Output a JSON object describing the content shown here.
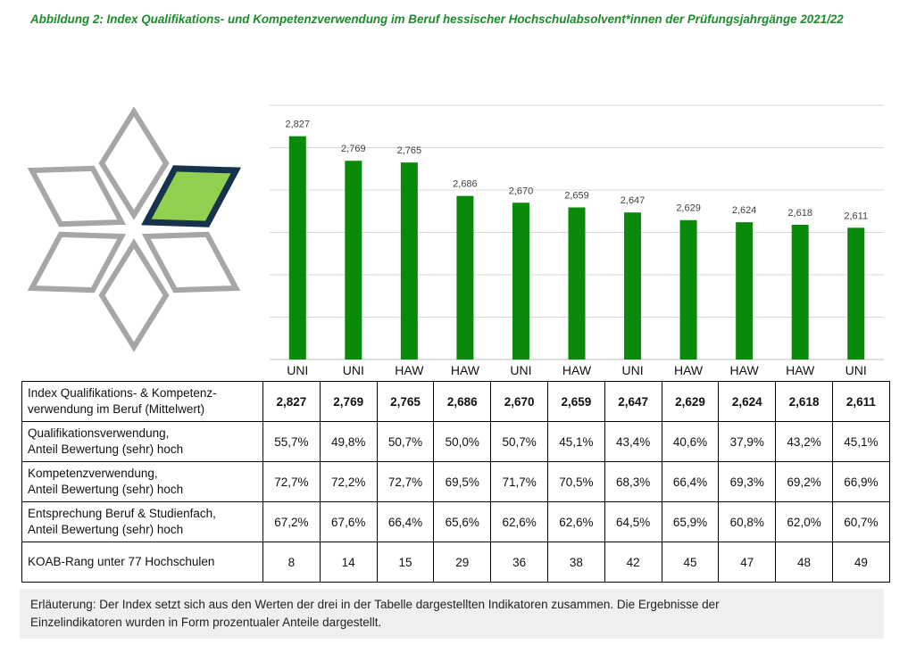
{
  "title": "Abbildung 2: Index Qualifikations- und Kompetenzverwendung im Beruf hessischer Hochschulabsolvent*innen der Prüfungsjahrgänge 2021/22",
  "colors": {
    "title": "#1f8a2e",
    "bar": "#0a8a0a",
    "logo_outline": "#a6a6a6",
    "logo_highlight_fill": "#92d050",
    "logo_highlight_stroke": "#17324d",
    "grid": "#d9d9d9",
    "note_background": "#efefef"
  },
  "chart_data": {
    "type": "bar",
    "categories": [
      "UNI",
      "UNI",
      "HAW",
      "HAW",
      "UNI",
      "HAW",
      "UNI",
      "HAW",
      "HAW",
      "HAW",
      "UNI"
    ],
    "values": [
      2.827,
      2.769,
      2.765,
      2.686,
      2.67,
      2.659,
      2.647,
      2.629,
      2.624,
      2.618,
      2.611
    ],
    "value_labels": [
      "2,827",
      "2,769",
      "2,765",
      "2,686",
      "2,670",
      "2,659",
      "2,647",
      "2,629",
      "2,624",
      "2,618",
      "2,611"
    ],
    "ylim": [
      2.3,
      2.9
    ],
    "y_gridlines": [
      2.3,
      2.4,
      2.5,
      2.6,
      2.7,
      2.8,
      2.9
    ],
    "grid": true,
    "legend": "none"
  },
  "table": {
    "rows": [
      {
        "label": [
          "Index Qualifikations- & Kompetenz-",
          "verwendung im Beruf (Mittelwert)"
        ],
        "values": [
          "2,827",
          "2,769",
          "2,765",
          "2,686",
          "2,670",
          "2,659",
          "2,647",
          "2,629",
          "2,624",
          "2,618",
          "2,611"
        ]
      },
      {
        "label": [
          "Qualifikationsverwendung,",
          "Anteil Bewertung (sehr) hoch"
        ],
        "values": [
          "55,7%",
          "49,8%",
          "50,7%",
          "50,0%",
          "50,7%",
          "45,1%",
          "43,4%",
          "40,6%",
          "37,9%",
          "43,2%",
          "45,1%"
        ]
      },
      {
        "label": [
          "Kompetenzverwendung,",
          "Anteil Bewertung (sehr) hoch"
        ],
        "values": [
          "72,7%",
          "72,2%",
          "72,7%",
          "69,5%",
          "71,7%",
          "70,5%",
          "68,3%",
          "66,4%",
          "69,3%",
          "69,2%",
          "66,9%"
        ]
      },
      {
        "label": [
          "Entsprechung Beruf & Studienfach,",
          "Anteil Bewertung (sehr) hoch"
        ],
        "values": [
          "67,2%",
          "67,6%",
          "66,4%",
          "65,6%",
          "62,6%",
          "62,6%",
          "64,5%",
          "65,9%",
          "60,8%",
          "62,0%",
          "60,7%"
        ]
      },
      {
        "label": [
          "KOAB-Rang unter 77 Hochschulen"
        ],
        "values": [
          "8",
          "14",
          "15",
          "29",
          "36",
          "38",
          "42",
          "45",
          "47",
          "48",
          "49"
        ]
      }
    ]
  },
  "note": {
    "lines": [
      "Erläuterung: Der Index setzt sich aus den Werten der drei in der Tabelle dargestellten Indikatoren zusammen. Die Ergebnisse der",
      "Einzelindikatoren wurden in Form prozentualer Anteile dargestellt."
    ]
  }
}
